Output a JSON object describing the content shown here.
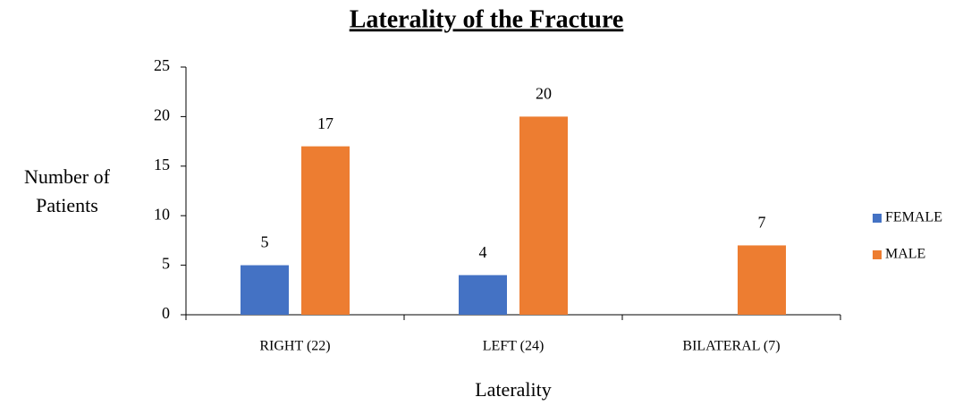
{
  "chart_data": {
    "type": "bar",
    "title": "Laterality of the Fracture",
    "x_label": "Laterality",
    "y_label": "Number of Patients",
    "categories": [
      "RIGHT (22)",
      "LEFT (24)",
      "BILATERAL (7)"
    ],
    "series": [
      {
        "name": "FEMALE",
        "color": "#4472c4",
        "values": [
          5,
          4,
          null
        ]
      },
      {
        "name": "MALE",
        "color": "#ed7d31",
        "values": [
          17,
          20,
          7
        ]
      }
    ],
    "ylim": [
      0,
      25
    ],
    "yticks": [
      0,
      5,
      10,
      15,
      20,
      25
    ],
    "grid": false,
    "legend": "right"
  }
}
